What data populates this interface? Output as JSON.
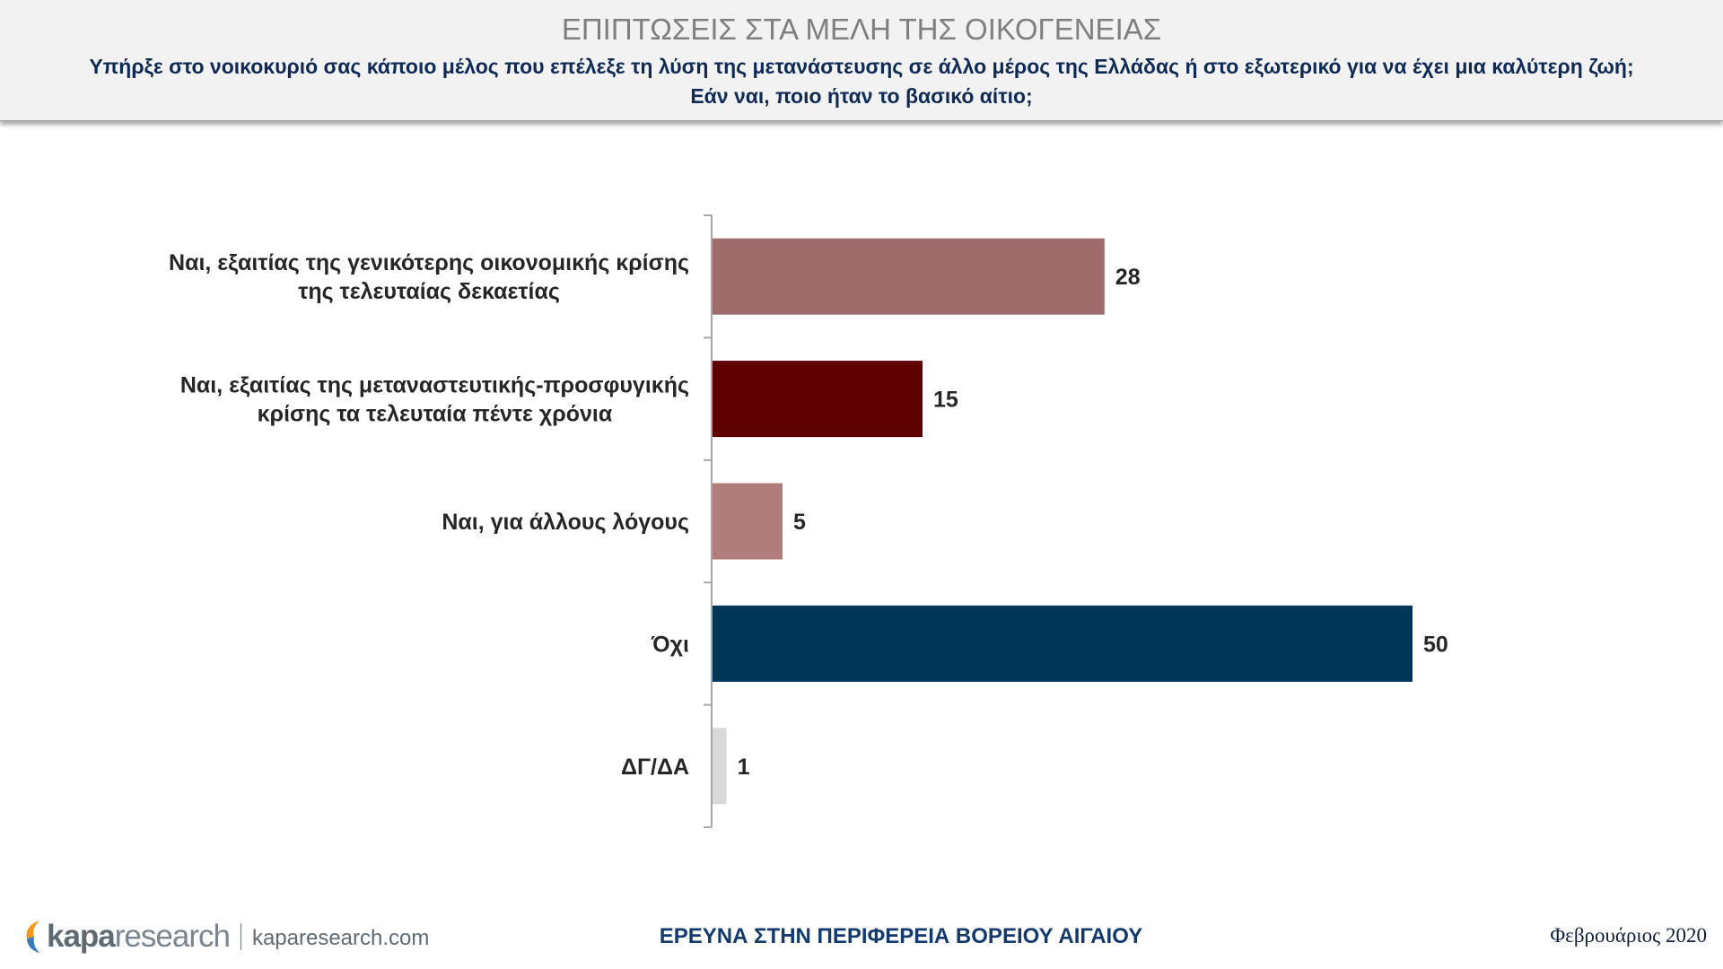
{
  "header": {
    "title": "ΕΠΙΠΤΩΣΕΙΣ ΣΤΑ ΜΕΛΗ ΤΗΣ ΟΙΚΟΓΕΝΕΙΑΣ",
    "subtitle_line1": "Υπήρξε στο νοικοκυριό σας κάποιο μέλος που επέλεξε τη λύση της μετανάστευσης σε άλλο μέρος της Ελλάδας ή στο εξωτερικό για να έχει μια καλύτερη ζωή;",
    "subtitle_line2": "Εάν ναι, ποιο ήταν το βασικό αίτιο;"
  },
  "chart_data": {
    "type": "bar",
    "orientation": "horizontal",
    "categories": [
      [
        "Ναι, εξαιτίας της γενικότερης οικονομικής κρίσης",
        "της τελευταίας δεκαετίας"
      ],
      [
        "Ναι, εξαιτίας της μεταναστευτικής-προσφυγικής",
        "κρίσης τα τελευταία πέντε χρόνια"
      ],
      [
        "Ναι, για άλλους λόγους"
      ],
      [
        "Όχι"
      ],
      [
        "ΔΓ/ΔΑ"
      ]
    ],
    "values": [
      28,
      15,
      5,
      50,
      1
    ],
    "data_labels": [
      "28",
      "15",
      "5",
      "50",
      "1"
    ],
    "colors": [
      "#a06b6b",
      "#5e0000",
      "#b07d7b",
      "#003658",
      "#d9d9d9"
    ],
    "xlim": [
      0,
      50
    ],
    "grid": false,
    "legend": "none"
  },
  "footer": {
    "logo_kapa": "kapa",
    "logo_research": "research",
    "logo_url": "kaparesearch.com",
    "survey": "ΕΡΕΥΝΑ ΣΤΗΝ ΠΕΡΙΦΕΡΕΙΑ ΒΟΡΕΙΟΥ ΑΙΓΑΙΟΥ",
    "date": "Φεβρουάριος 2020"
  },
  "colors": {
    "title": "#7f7f7f",
    "subtitle": "#0f2a54",
    "footer_text": "#133a6e",
    "logo_orange": "#f29a1f",
    "logo_blue": "#3d7ab8"
  }
}
